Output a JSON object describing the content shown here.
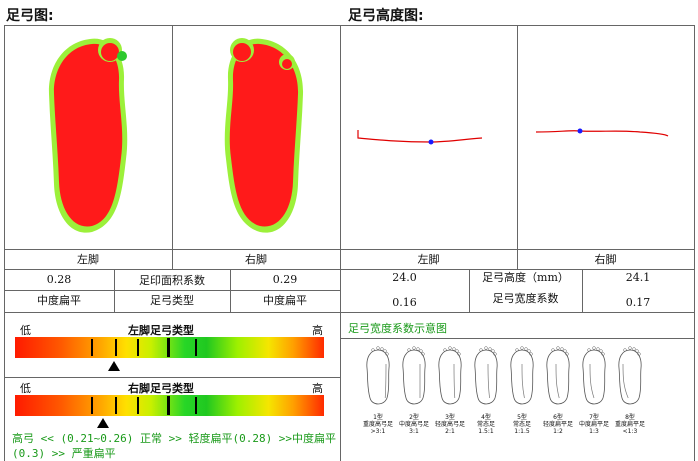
{
  "left_panel": {
    "title": "足弓图:",
    "left_foot_label": "左脚",
    "right_foot_label": "右脚",
    "row1": {
      "left_value": "0.28",
      "label": "足印面积系数",
      "right_value": "0.29"
    },
    "row2": {
      "left_value": "中度扁平",
      "label": "足弓类型",
      "right_value": "中度扁平"
    }
  },
  "right_panel": {
    "title": "足弓高度图:",
    "left_foot_label": "左脚",
    "right_foot_label": "右脚",
    "row1": {
      "left_value": "24.0",
      "label": "足弓高度（mm）",
      "right_value": "24.1"
    },
    "row2": {
      "left_value": "0.16",
      "label": "足弓宽度系数",
      "right_value": "0.17"
    }
  },
  "left_scale": {
    "low": "低",
    "title": "左脚足弓类型",
    "high": "高",
    "marker_fraction": 0.28
  },
  "right_scale": {
    "low": "低",
    "title": "右脚足弓类型",
    "high": "高",
    "marker_fraction": 0.29
  },
  "legend": {
    "line1": "高弓 << (0.21~0.26) 正常 >> 轻度扁平(0.28) >>中度扁平",
    "line2": "(0.3) >> 严重扁平"
  },
  "diagram": {
    "title": "足弓宽度系数示意图",
    "types": [
      {
        "line1": "1型",
        "line2": "重度高弓足",
        "line3": ">3:1"
      },
      {
        "line1": "2型",
        "line2": "中度高弓足",
        "line3": "3:1"
      },
      {
        "line1": "3型",
        "line2": "轻度高弓足",
        "line3": "2:1"
      },
      {
        "line1": "4型",
        "line2": "常态足",
        "line3": "1.5:1"
      },
      {
        "line1": "5型",
        "line2": "常态足",
        "line3": "1:1.5"
      },
      {
        "line1": "6型",
        "line2": "轻度扁平足",
        "line3": "1:2"
      },
      {
        "line1": "7型",
        "line2": "中度扁平足",
        "line3": "1:3"
      },
      {
        "line1": "8型",
        "line2": "重度扁平足",
        "line3": "<1:3"
      }
    ]
  },
  "colors": {
    "heat_high": "#ff1a1a",
    "heat_mid": "#9cf03a",
    "heat_low": "#2ec82e",
    "curve": "#e00000",
    "point": "#1a1aff",
    "legend_green": "#1a9a1a"
  }
}
